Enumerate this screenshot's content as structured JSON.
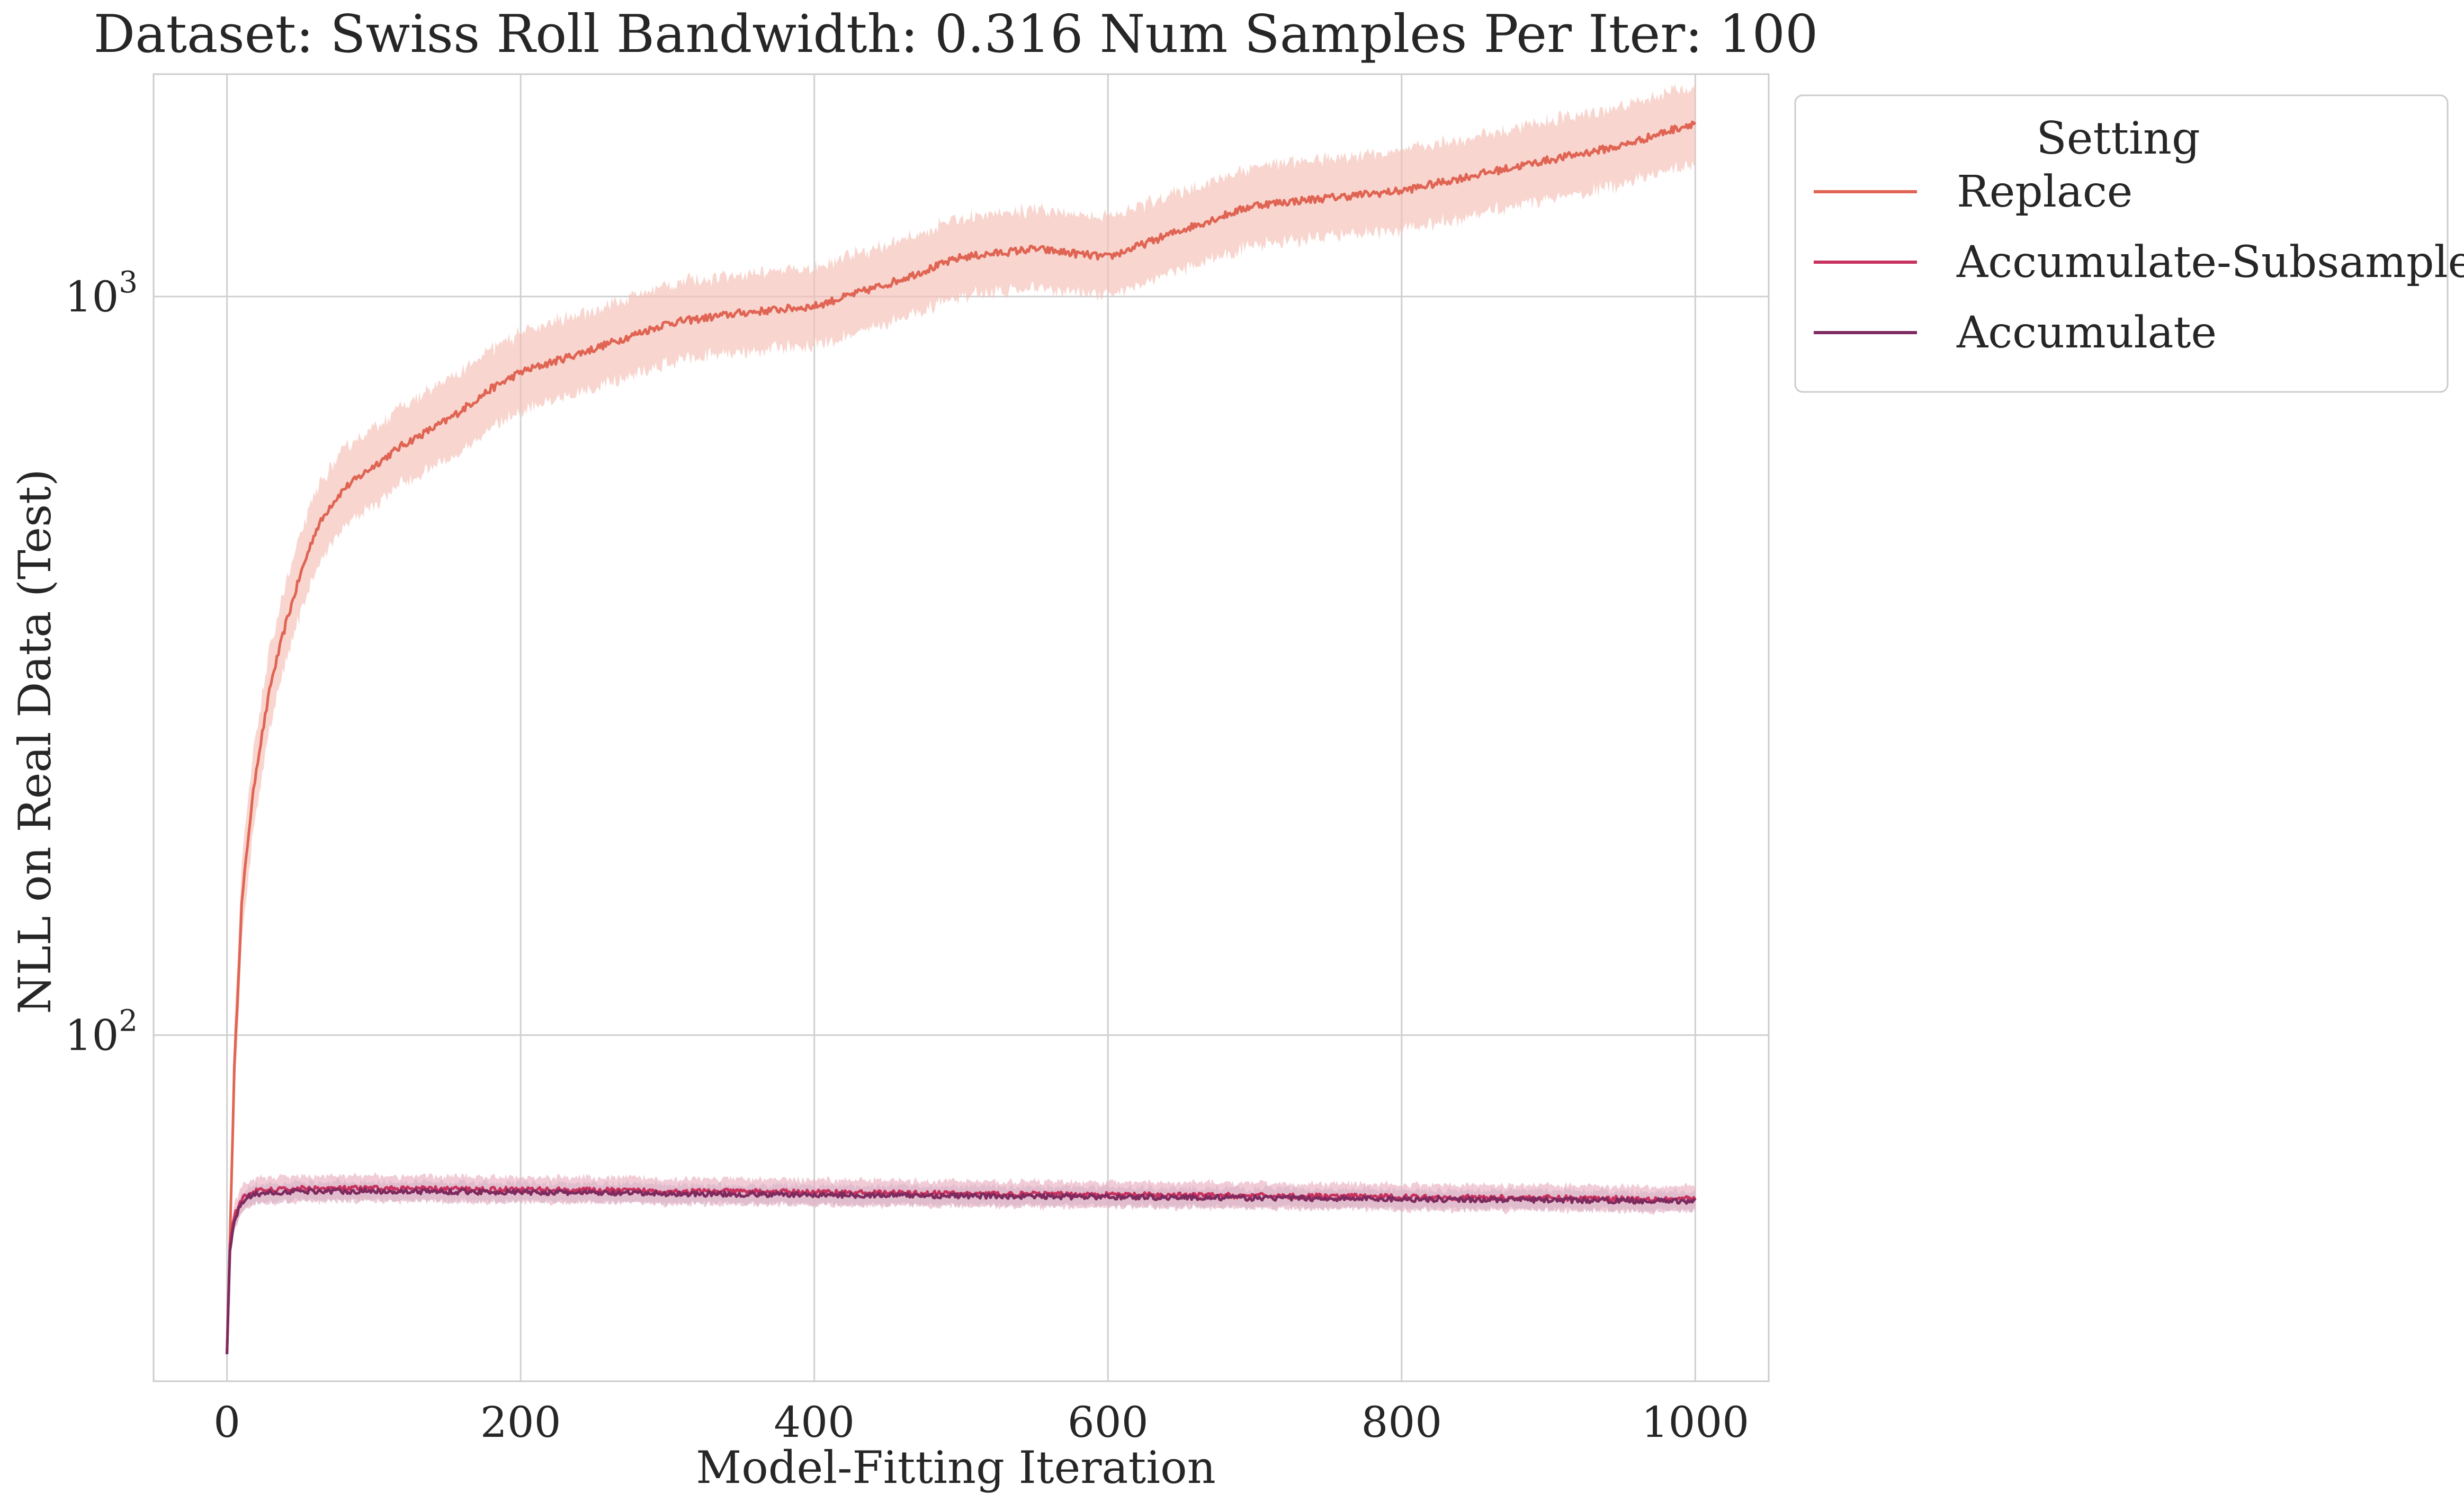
{
  "chart_data": {
    "type": "line",
    "title": "Dataset: Swiss Roll Bandwidth: 0.316 Num Samples Per Iter: 100",
    "xlabel": "Model-Fitting Iteration",
    "ylabel": "NLL on Real Data (Test)",
    "xlim": [
      -50,
      1050
    ],
    "ylim": [
      34,
      2000
    ],
    "yscale": "log",
    "xticks": [
      0,
      200,
      400,
      600,
      800,
      1000
    ],
    "xtick_labels": [
      "0",
      "200",
      "400",
      "600",
      "800",
      "1000"
    ],
    "yticks": [
      100,
      1000
    ],
    "ytick_bases": [
      "10",
      "10"
    ],
    "ytick_exponents": [
      "2",
      "3"
    ],
    "grid": true,
    "legend": {
      "title": "Setting",
      "placement": "outside-top-right"
    },
    "series": [
      {
        "name": "Replace",
        "color": "#e06453",
        "band_color": "#f4c0b6",
        "x": [
          0,
          5,
          10,
          15,
          20,
          30,
          40,
          50,
          60,
          70,
          80,
          100,
          120,
          150,
          180,
          200,
          250,
          300,
          350,
          400,
          450,
          500,
          550,
          600,
          650,
          700,
          750,
          800,
          850,
          900,
          950,
          1000
        ],
        "y": [
          37,
          90,
          150,
          190,
          230,
          300,
          360,
          420,
          480,
          520,
          550,
          590,
          630,
          680,
          750,
          790,
          850,
          920,
          950,
          970,
          1040,
          1130,
          1160,
          1130,
          1230,
          1330,
          1360,
          1390,
          1460,
          1530,
          1600,
          1720
        ],
        "band_rel": 0.13
      },
      {
        "name": "Accumulate-Subsample",
        "color": "#c8325e",
        "band_color": "#eab0c2",
        "x": [
          0,
          2,
          5,
          10,
          15,
          20,
          50,
          100,
          200,
          300,
          400,
          500,
          600,
          700,
          800,
          900,
          1000
        ],
        "y": [
          37,
          52,
          57,
          60,
          61,
          61.5,
          62,
          62,
          61.8,
          61.5,
          61.3,
          61,
          60.8,
          60.6,
          60.4,
          60.2,
          60
        ],
        "band_rel": 0.04
      },
      {
        "name": "Accumulate",
        "color": "#7d2a5f",
        "band_color": "#d8b3c8",
        "x": [
          0,
          2,
          5,
          10,
          15,
          20,
          50,
          100,
          200,
          300,
          400,
          500,
          600,
          700,
          800,
          900,
          1000
        ],
        "y": [
          37,
          51,
          56,
          59.5,
          60.5,
          61,
          61.5,
          61.5,
          61.3,
          61,
          60.8,
          60.6,
          60.4,
          60.2,
          60,
          59.8,
          59.6
        ],
        "band_rel": 0.03
      }
    ]
  }
}
